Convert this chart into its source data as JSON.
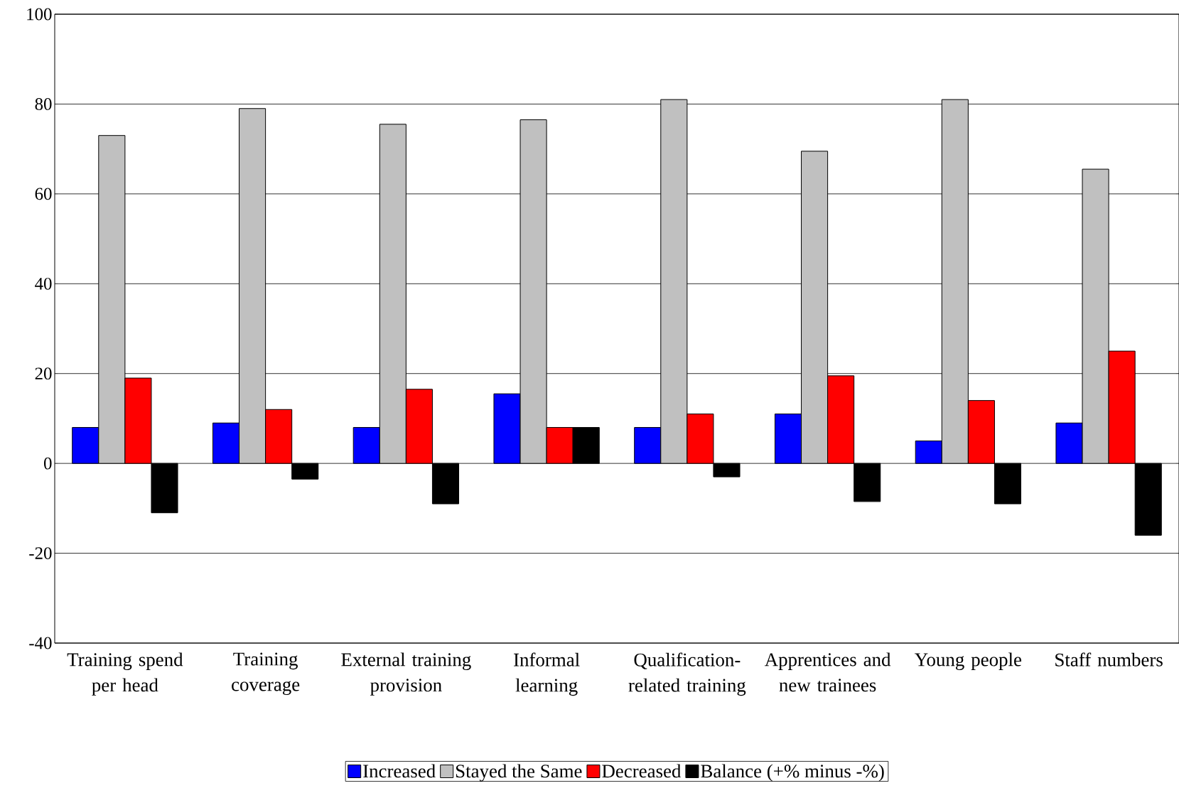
{
  "chart_data": {
    "type": "bar",
    "categories": [
      "Training spend per head",
      "Training coverage",
      "External training provision",
      "Informal learning",
      "Qualification-related training",
      "Apprentices and new trainees",
      "Young people",
      "Staff numbers"
    ],
    "series": [
      {
        "name": "Increased",
        "color": "#0000ff",
        "values": [
          8,
          9,
          8,
          15.5,
          8,
          11,
          5,
          9
        ]
      },
      {
        "name": "Stayed the Same",
        "color": "#c0c0c0",
        "values": [
          73,
          79,
          75.5,
          76.5,
          81,
          69.5,
          81,
          65.5
        ]
      },
      {
        "name": "Decreased",
        "color": "#ff0000",
        "values": [
          19,
          12,
          16.5,
          8,
          11,
          19.5,
          14,
          25
        ]
      },
      {
        "name": "Balance (+% minus -%)",
        "color": "#000000",
        "values": [
          -11,
          -3.5,
          -9,
          8,
          -3,
          -8.5,
          -9,
          -16
        ]
      }
    ],
    "ylim": [
      -40,
      100
    ],
    "yticks": [
      -40,
      -20,
      0,
      20,
      40,
      60,
      80,
      100
    ],
    "grid": "y",
    "legend": "bottom"
  }
}
